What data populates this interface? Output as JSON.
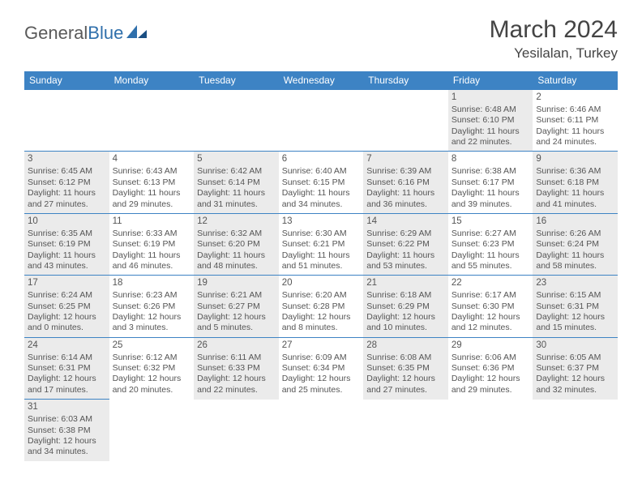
{
  "brand": {
    "name_a": "General",
    "name_b": "Blue"
  },
  "title": "March 2024",
  "location": "Yesilalan, Turkey",
  "colors": {
    "header_bg": "#3d83c4",
    "header_text": "#ffffff",
    "cell_border": "#3d83c4",
    "shaded_bg": "#ebebeb",
    "text": "#555555",
    "title_text": "#444444",
    "brand_gray": "#5a5a5a",
    "brand_blue": "#2f6fab"
  },
  "typography": {
    "title_fontsize": 30,
    "location_fontsize": 17,
    "dayheader_fontsize": 12,
    "cell_fontsize": 10.5
  },
  "day_headers": [
    "Sunday",
    "Monday",
    "Tuesday",
    "Wednesday",
    "Thursday",
    "Friday",
    "Saturday"
  ],
  "weeks": [
    [
      {
        "blank": true
      },
      {
        "blank": true
      },
      {
        "blank": true
      },
      {
        "blank": true
      },
      {
        "blank": true
      },
      {
        "day": "1",
        "shaded": true,
        "sunrise": "Sunrise: 6:48 AM",
        "sunset": "Sunset: 6:10 PM",
        "daylight1": "Daylight: 11 hours",
        "daylight2": "and 22 minutes."
      },
      {
        "day": "2",
        "shaded": false,
        "sunrise": "Sunrise: 6:46 AM",
        "sunset": "Sunset: 6:11 PM",
        "daylight1": "Daylight: 11 hours",
        "daylight2": "and 24 minutes."
      }
    ],
    [
      {
        "day": "3",
        "shaded": true,
        "sunrise": "Sunrise: 6:45 AM",
        "sunset": "Sunset: 6:12 PM",
        "daylight1": "Daylight: 11 hours",
        "daylight2": "and 27 minutes."
      },
      {
        "day": "4",
        "shaded": false,
        "sunrise": "Sunrise: 6:43 AM",
        "sunset": "Sunset: 6:13 PM",
        "daylight1": "Daylight: 11 hours",
        "daylight2": "and 29 minutes."
      },
      {
        "day": "5",
        "shaded": true,
        "sunrise": "Sunrise: 6:42 AM",
        "sunset": "Sunset: 6:14 PM",
        "daylight1": "Daylight: 11 hours",
        "daylight2": "and 31 minutes."
      },
      {
        "day": "6",
        "shaded": false,
        "sunrise": "Sunrise: 6:40 AM",
        "sunset": "Sunset: 6:15 PM",
        "daylight1": "Daylight: 11 hours",
        "daylight2": "and 34 minutes."
      },
      {
        "day": "7",
        "shaded": true,
        "sunrise": "Sunrise: 6:39 AM",
        "sunset": "Sunset: 6:16 PM",
        "daylight1": "Daylight: 11 hours",
        "daylight2": "and 36 minutes."
      },
      {
        "day": "8",
        "shaded": false,
        "sunrise": "Sunrise: 6:38 AM",
        "sunset": "Sunset: 6:17 PM",
        "daylight1": "Daylight: 11 hours",
        "daylight2": "and 39 minutes."
      },
      {
        "day": "9",
        "shaded": true,
        "sunrise": "Sunrise: 6:36 AM",
        "sunset": "Sunset: 6:18 PM",
        "daylight1": "Daylight: 11 hours",
        "daylight2": "and 41 minutes."
      }
    ],
    [
      {
        "day": "10",
        "shaded": true,
        "sunrise": "Sunrise: 6:35 AM",
        "sunset": "Sunset: 6:19 PM",
        "daylight1": "Daylight: 11 hours",
        "daylight2": "and 43 minutes."
      },
      {
        "day": "11",
        "shaded": false,
        "sunrise": "Sunrise: 6:33 AM",
        "sunset": "Sunset: 6:19 PM",
        "daylight1": "Daylight: 11 hours",
        "daylight2": "and 46 minutes."
      },
      {
        "day": "12",
        "shaded": true,
        "sunrise": "Sunrise: 6:32 AM",
        "sunset": "Sunset: 6:20 PM",
        "daylight1": "Daylight: 11 hours",
        "daylight2": "and 48 minutes."
      },
      {
        "day": "13",
        "shaded": false,
        "sunrise": "Sunrise: 6:30 AM",
        "sunset": "Sunset: 6:21 PM",
        "daylight1": "Daylight: 11 hours",
        "daylight2": "and 51 minutes."
      },
      {
        "day": "14",
        "shaded": true,
        "sunrise": "Sunrise: 6:29 AM",
        "sunset": "Sunset: 6:22 PM",
        "daylight1": "Daylight: 11 hours",
        "daylight2": "and 53 minutes."
      },
      {
        "day": "15",
        "shaded": false,
        "sunrise": "Sunrise: 6:27 AM",
        "sunset": "Sunset: 6:23 PM",
        "daylight1": "Daylight: 11 hours",
        "daylight2": "and 55 minutes."
      },
      {
        "day": "16",
        "shaded": true,
        "sunrise": "Sunrise: 6:26 AM",
        "sunset": "Sunset: 6:24 PM",
        "daylight1": "Daylight: 11 hours",
        "daylight2": "and 58 minutes."
      }
    ],
    [
      {
        "day": "17",
        "shaded": true,
        "sunrise": "Sunrise: 6:24 AM",
        "sunset": "Sunset: 6:25 PM",
        "daylight1": "Daylight: 12 hours",
        "daylight2": "and 0 minutes."
      },
      {
        "day": "18",
        "shaded": false,
        "sunrise": "Sunrise: 6:23 AM",
        "sunset": "Sunset: 6:26 PM",
        "daylight1": "Daylight: 12 hours",
        "daylight2": "and 3 minutes."
      },
      {
        "day": "19",
        "shaded": true,
        "sunrise": "Sunrise: 6:21 AM",
        "sunset": "Sunset: 6:27 PM",
        "daylight1": "Daylight: 12 hours",
        "daylight2": "and 5 minutes."
      },
      {
        "day": "20",
        "shaded": false,
        "sunrise": "Sunrise: 6:20 AM",
        "sunset": "Sunset: 6:28 PM",
        "daylight1": "Daylight: 12 hours",
        "daylight2": "and 8 minutes."
      },
      {
        "day": "21",
        "shaded": true,
        "sunrise": "Sunrise: 6:18 AM",
        "sunset": "Sunset: 6:29 PM",
        "daylight1": "Daylight: 12 hours",
        "daylight2": "and 10 minutes."
      },
      {
        "day": "22",
        "shaded": false,
        "sunrise": "Sunrise: 6:17 AM",
        "sunset": "Sunset: 6:30 PM",
        "daylight1": "Daylight: 12 hours",
        "daylight2": "and 12 minutes."
      },
      {
        "day": "23",
        "shaded": true,
        "sunrise": "Sunrise: 6:15 AM",
        "sunset": "Sunset: 6:31 PM",
        "daylight1": "Daylight: 12 hours",
        "daylight2": "and 15 minutes."
      }
    ],
    [
      {
        "day": "24",
        "shaded": true,
        "sunrise": "Sunrise: 6:14 AM",
        "sunset": "Sunset: 6:31 PM",
        "daylight1": "Daylight: 12 hours",
        "daylight2": "and 17 minutes."
      },
      {
        "day": "25",
        "shaded": false,
        "sunrise": "Sunrise: 6:12 AM",
        "sunset": "Sunset: 6:32 PM",
        "daylight1": "Daylight: 12 hours",
        "daylight2": "and 20 minutes."
      },
      {
        "day": "26",
        "shaded": true,
        "sunrise": "Sunrise: 6:11 AM",
        "sunset": "Sunset: 6:33 PM",
        "daylight1": "Daylight: 12 hours",
        "daylight2": "and 22 minutes."
      },
      {
        "day": "27",
        "shaded": false,
        "sunrise": "Sunrise: 6:09 AM",
        "sunset": "Sunset: 6:34 PM",
        "daylight1": "Daylight: 12 hours",
        "daylight2": "and 25 minutes."
      },
      {
        "day": "28",
        "shaded": true,
        "sunrise": "Sunrise: 6:08 AM",
        "sunset": "Sunset: 6:35 PM",
        "daylight1": "Daylight: 12 hours",
        "daylight2": "and 27 minutes."
      },
      {
        "day": "29",
        "shaded": false,
        "sunrise": "Sunrise: 6:06 AM",
        "sunset": "Sunset: 6:36 PM",
        "daylight1": "Daylight: 12 hours",
        "daylight2": "and 29 minutes."
      },
      {
        "day": "30",
        "shaded": true,
        "sunrise": "Sunrise: 6:05 AM",
        "sunset": "Sunset: 6:37 PM",
        "daylight1": "Daylight: 12 hours",
        "daylight2": "and 32 minutes."
      }
    ],
    [
      {
        "day": "31",
        "shaded": true,
        "sunrise": "Sunrise: 6:03 AM",
        "sunset": "Sunset: 6:38 PM",
        "daylight1": "Daylight: 12 hours",
        "daylight2": "and 34 minutes."
      },
      {
        "blank": true,
        "spacer": true
      },
      {
        "blank": true,
        "spacer": true
      },
      {
        "blank": true,
        "spacer": true
      },
      {
        "blank": true,
        "spacer": true
      },
      {
        "blank": true,
        "spacer": true
      },
      {
        "blank": true,
        "spacer": true
      }
    ]
  ]
}
